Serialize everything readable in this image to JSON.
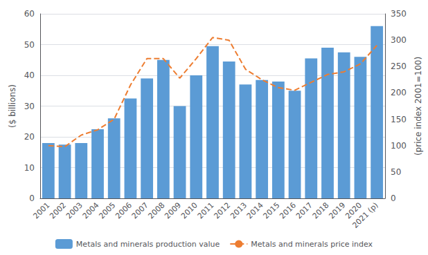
{
  "chart_data": {
    "type": "bar",
    "categories": [
      "2001",
      "2002",
      "2003",
      "2004",
      "2005",
      "2006",
      "2007",
      "2008",
      "2009",
      "2010",
      "2011",
      "2012",
      "2013",
      "2014",
      "2015",
      "2016",
      "2017",
      "2018",
      "2019",
      "2020",
      "2021 (p)"
    ],
    "series": [
      {
        "name": "Metals and minerals production value",
        "type": "bar",
        "color": "#5B9BD5",
        "values": [
          18.0,
          17.5,
          18.0,
          22.5,
          26.0,
          32.5,
          39.0,
          45.0,
          30.0,
          40.0,
          49.5,
          44.5,
          37.0,
          38.5,
          38.0,
          35.0,
          45.5,
          49.0,
          47.5,
          46.0,
          56.0
        ]
      },
      {
        "name": "Metals and minerals price index",
        "type": "line",
        "color": "#ED7D31",
        "line_style": "dashed",
        "axis": "y2",
        "values": [
          100,
          98,
          120,
          130,
          150,
          215,
          265,
          265,
          228,
          265,
          305,
          300,
          245,
          225,
          210,
          205,
          220,
          235,
          240,
          255,
          290
        ]
      }
    ],
    "ylabel": "($ billions)",
    "y2label": "(price index 2001=100)",
    "ylim": [
      0,
      60
    ],
    "yticks": [
      0,
      10,
      20,
      30,
      40,
      50,
      60
    ],
    "y2lim": [
      0,
      350
    ],
    "y2ticks": [
      0,
      50,
      100,
      150,
      200,
      250,
      300,
      350
    ],
    "grid": true,
    "legend": "bottom"
  }
}
